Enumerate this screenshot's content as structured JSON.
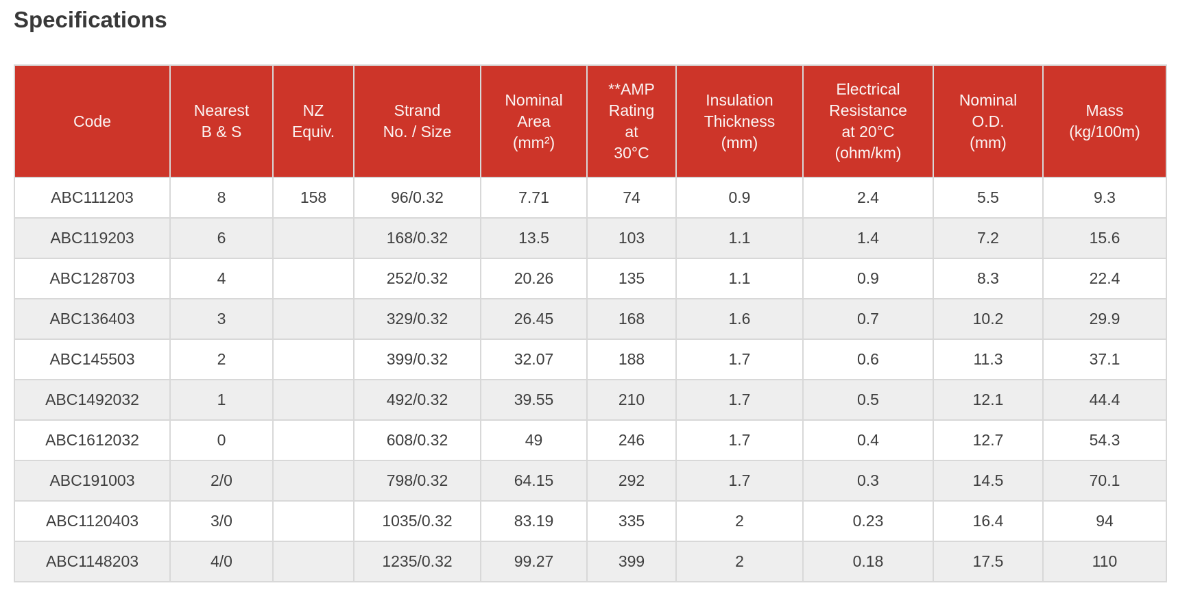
{
  "page": {
    "title": "Specifications"
  },
  "colors": {
    "header_bg": "#cd3529",
    "header_text": "#fbf4f3",
    "row_bg": "#ffffff",
    "row_alt_bg": "#eeeeee",
    "border": "#d8d8d8",
    "body_text": "#3e3e3e",
    "title_text": "#383838"
  },
  "table": {
    "columns": [
      "Code",
      "Nearest\nB & S",
      "NZ\nEquiv.",
      "Strand\nNo. / Size",
      "Nominal\nArea\n(mm²)",
      "**AMP\nRating\nat\n30°C",
      "Insulation\nThickness\n(mm)",
      "Electrical\nResistance\nat 20°C\n(ohm/km)",
      "Nominal\nO.D.\n(mm)",
      "Mass\n(kg/100m)"
    ],
    "rows": [
      [
        "ABC111203",
        "8",
        "158",
        "96/0.32",
        "7.71",
        "74",
        "0.9",
        "2.4",
        "5.5",
        "9.3"
      ],
      [
        "ABC119203",
        "6",
        "",
        "168/0.32",
        "13.5",
        "103",
        "1.1",
        "1.4",
        "7.2",
        "15.6"
      ],
      [
        "ABC128703",
        "4",
        "",
        "252/0.32",
        "20.26",
        "135",
        "1.1",
        "0.9",
        "8.3",
        "22.4"
      ],
      [
        "ABC136403",
        "3",
        "",
        "329/0.32",
        "26.45",
        "168",
        "1.6",
        "0.7",
        "10.2",
        "29.9"
      ],
      [
        "ABC145503",
        "2",
        "",
        "399/0.32",
        "32.07",
        "188",
        "1.7",
        "0.6",
        "11.3",
        "37.1"
      ],
      [
        "ABC1492032",
        "1",
        "",
        "492/0.32",
        "39.55",
        "210",
        "1.7",
        "0.5",
        "12.1",
        "44.4"
      ],
      [
        "ABC1612032",
        "0",
        "",
        "608/0.32",
        "49",
        "246",
        "1.7",
        "0.4",
        "12.7",
        "54.3"
      ],
      [
        "ABC191003",
        "2/0",
        "",
        "798/0.32",
        "64.15",
        "292",
        "1.7",
        "0.3",
        "14.5",
        "70.1"
      ],
      [
        "ABC1120403",
        "3/0",
        "",
        "1035/0.32",
        "83.19",
        "335",
        "2",
        "0.23",
        "16.4",
        "94"
      ],
      [
        "ABC1148203",
        "4/0",
        "",
        "1235/0.32",
        "99.27",
        "399",
        "2",
        "0.18",
        "17.5",
        "110"
      ]
    ]
  }
}
